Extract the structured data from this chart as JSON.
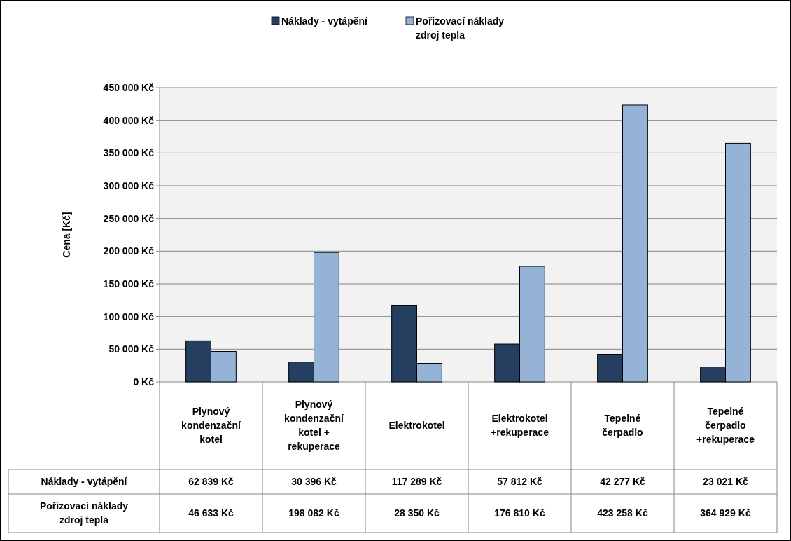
{
  "chart_data": {
    "type": "bar",
    "ylabel": "Cena [Kč]",
    "categories": [
      "Plynový kondenzační kotel",
      "Plynový kondenzační kotel + rekuperace",
      "Elektrokotel",
      "Elektrokotel +rekuperace",
      "Tepelné čerpadlo",
      "Tepelné čerpadlo +rekuperace"
    ],
    "series": [
      {
        "name": "Náklady - vytápění",
        "color": "#243f60",
        "values": [
          62839,
          30396,
          117289,
          57812,
          42277,
          23021
        ],
        "value_labels": [
          "62 839 Kč",
          "30 396 Kč",
          "117 289 Kč",
          "57 812 Kč",
          "42 277 Kč",
          "23 021 Kč"
        ]
      },
      {
        "name": "Pořizovací náklady zdroj tepla",
        "color": "#95b3d7",
        "values": [
          46633,
          198082,
          28350,
          176810,
          423258,
          364929
        ],
        "value_labels": [
          "46 633 Kč",
          "198 082 Kč",
          "28 350 Kč",
          "176 810 Kč",
          "423 258 Kč",
          "364 929 Kč"
        ]
      }
    ],
    "ylim": [
      0,
      450000
    ],
    "yticks": [
      {
        "value": 0,
        "label": "0 Kč"
      },
      {
        "value": 50000,
        "label": "50 000 Kč"
      },
      {
        "value": 100000,
        "label": "100 000 Kč"
      },
      {
        "value": 150000,
        "label": "150 000 Kč"
      },
      {
        "value": 200000,
        "label": "200 000 Kč"
      },
      {
        "value": 250000,
        "label": "250 000 Kč"
      },
      {
        "value": 300000,
        "label": "300 000 Kč"
      },
      {
        "value": 350000,
        "label": "350 000 Kč"
      },
      {
        "value": 400000,
        "label": "400 000 Kč"
      },
      {
        "value": 450000,
        "label": "450 000 Kč"
      }
    ],
    "grid": "y",
    "legend": "top"
  }
}
